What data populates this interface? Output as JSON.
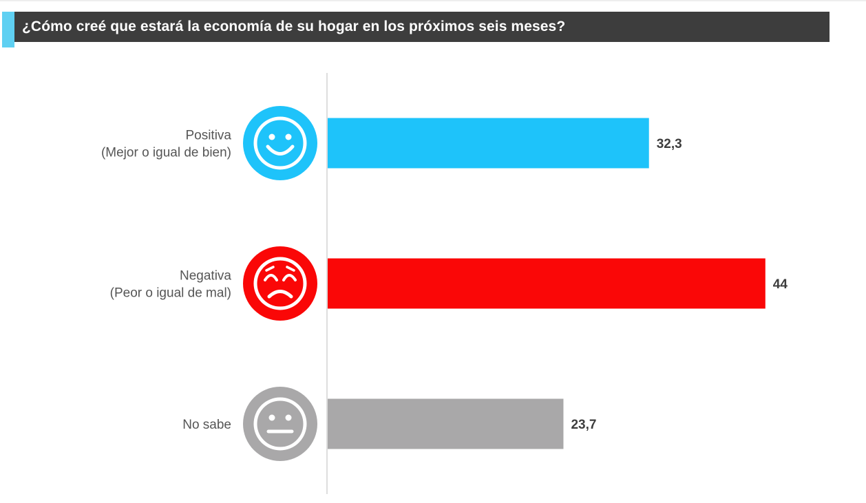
{
  "title": "¿Cómo creé que estará la economía de su hogar en los próximos seis meses?",
  "chart_data": {
    "type": "bar",
    "orientation": "horizontal",
    "title": "¿Cómo creé que estará la economía de su hogar en los próximos seis meses?",
    "xlim": [
      0,
      50
    ],
    "grid": false,
    "categories": [
      {
        "label": [
          "Positiva",
          "(Mejor o igual de bien)"
        ],
        "value": 32.3,
        "value_label": "32,3",
        "color": "#1ec3fa",
        "icon": "smile-icon"
      },
      {
        "label": [
          "Negativa",
          "(Peor o igual de mal)"
        ],
        "value": 44,
        "value_label": "44",
        "color": "#fa0707",
        "icon": "sad-icon"
      },
      {
        "label": [
          "No sabe"
        ],
        "value": 23.7,
        "value_label": "23,7",
        "color": "#a9a8a9",
        "icon": "neutral-face-icon"
      }
    ]
  }
}
